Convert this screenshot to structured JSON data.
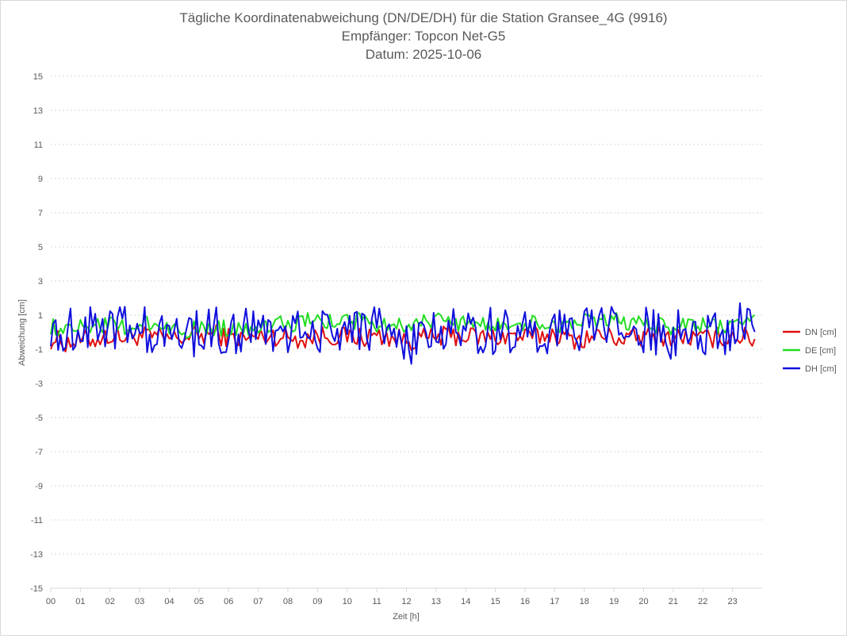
{
  "chart_data": {
    "type": "line",
    "title": [
      "Tägliche Koordinatenabweichung (DN/DE/DH) für die Station Gransee_4G (9916)",
      "Empfänger: Topcon Net-G5",
      "Datum: 2025-10-06"
    ],
    "xlabel": "Zeit [h]",
    "ylabel": "Abweichung [cm]",
    "xlim": [
      0,
      24
    ],
    "ylim": [
      -15,
      15
    ],
    "xticks": [
      "00",
      "01",
      "02",
      "03",
      "04",
      "05",
      "06",
      "07",
      "08",
      "09",
      "10",
      "11",
      "12",
      "13",
      "14",
      "15",
      "16",
      "17",
      "18",
      "19",
      "20",
      "21",
      "22",
      "23"
    ],
    "yticks": [
      "15",
      "13",
      "11",
      "9",
      "7",
      "5",
      "3",
      "1",
      "-1",
      "-3",
      "-5",
      "-7",
      "-9",
      "-11",
      "-13",
      "-15"
    ],
    "legend_position": "right",
    "samples_per_hour": 12,
    "series": [
      {
        "name": "DN [cm]",
        "color": "#e01010",
        "profile": [
          -0.4,
          -0.6,
          -0.5,
          -0.4,
          -0.2,
          -0.3,
          -0.2,
          -0.3,
          -0.4,
          -0.3,
          -0.2,
          -0.1,
          -0.3,
          -0.4,
          -0.3,
          -0.2,
          -0.3,
          -0.4,
          -0.2,
          -0.2,
          -0.3,
          -0.3,
          -0.2,
          -0.3,
          -0.5,
          -0.4,
          -0.3,
          -0.2,
          -0.2,
          -0.3,
          -0.3,
          -0.2,
          -0.3,
          -0.2,
          -0.1,
          -0.4,
          -0.4,
          -0.2,
          -0.3,
          -0.4,
          -0.3,
          -0.2,
          -0.3,
          -0.3,
          -0.4,
          -0.3,
          -0.2,
          -0.3,
          -0.6
        ],
        "amplitude": 0.6
      },
      {
        "name": "DE [cm]",
        "color": "#22dd22",
        "profile": [
          0.3,
          0.3,
          0.4,
          0.5,
          0.4,
          0.2,
          0.4,
          0.5,
          0.3,
          0.1,
          0.2,
          0.3,
          0.2,
          0.3,
          0.4,
          0.5,
          0.4,
          0.6,
          0.7,
          0.6,
          0.7,
          0.6,
          0.5,
          0.4,
          0.5,
          0.6,
          0.7,
          0.6,
          0.5,
          0.4,
          0.4,
          0.5,
          0.6,
          0.5,
          0.4,
          0.5,
          0.6,
          0.5,
          0.7,
          0.6,
          0.5,
          0.4,
          0.3,
          0.5,
          0.4,
          0.3,
          0.4,
          0.6,
          0.5
        ],
        "amplitude": 0.5
      },
      {
        "name": "DH [cm]",
        "color": "#1010dd",
        "profile": [
          0.2,
          0.1,
          0.2,
          0.6,
          0.5,
          0.1,
          0.2,
          -0.1,
          -0.2,
          -0.1,
          0.0,
          0.1,
          0.0,
          0.2,
          0.1,
          0.0,
          0.1,
          0.3,
          0.1,
          0.0,
          0.2,
          0.3,
          0.2,
          -0.1,
          -1.0,
          -0.6,
          0.2,
          0.3,
          0.1,
          0.0,
          0.1,
          0.2,
          0.0,
          -0.1,
          0.0,
          0.2,
          0.1,
          0.0,
          0.3,
          0.2,
          0.1,
          -0.1,
          -0.2,
          0.1,
          0.0,
          -0.3,
          0.3,
          0.5,
          0.3
        ],
        "amplitude": 1.4
      }
    ]
  }
}
